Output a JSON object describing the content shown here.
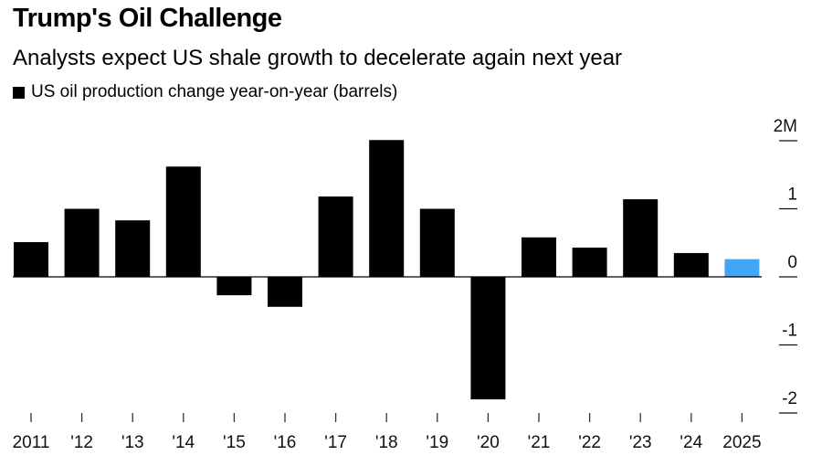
{
  "header": {
    "title": "Trump's Oil Challenge",
    "subtitle": "Analysts expect US shale growth to decelerate again next year",
    "legend_label": "US oil production change year-on-year (barrels)"
  },
  "colors": {
    "bar": "#000000",
    "highlight": "#42a5f5",
    "axis": "#000000"
  },
  "chart_data": {
    "type": "bar",
    "title": "Trump's Oil Challenge",
    "subtitle": "Analysts expect US shale growth to decelerate again next year",
    "xlabel": "",
    "ylabel": "",
    "legend": [
      {
        "name": "US oil production change year-on-year (barrels)",
        "position": "top-left"
      }
    ],
    "categories": [
      "2011",
      "'12",
      "'13",
      "'14",
      "'15",
      "'16",
      "'17",
      "'18",
      "'19",
      "'20",
      "'21",
      "'22",
      "'23",
      "'24",
      "2025"
    ],
    "series": [
      {
        "name": "US oil production change year-on-year (barrels)",
        "unit": "million barrels",
        "values": [
          0.51,
          1.0,
          0.83,
          1.62,
          -0.27,
          -0.44,
          1.18,
          2.01,
          1.0,
          -1.8,
          0.58,
          0.43,
          1.14,
          0.35,
          0.26
        ],
        "highlight_index": 14
      }
    ],
    "ylim": [
      -2,
      2
    ],
    "yticks": [
      2,
      1,
      0,
      -1,
      -2
    ],
    "ytick_labels": [
      "2M",
      "1",
      "0",
      "-1",
      "-2"
    ],
    "grid": false,
    "y_axis_side": "right"
  }
}
